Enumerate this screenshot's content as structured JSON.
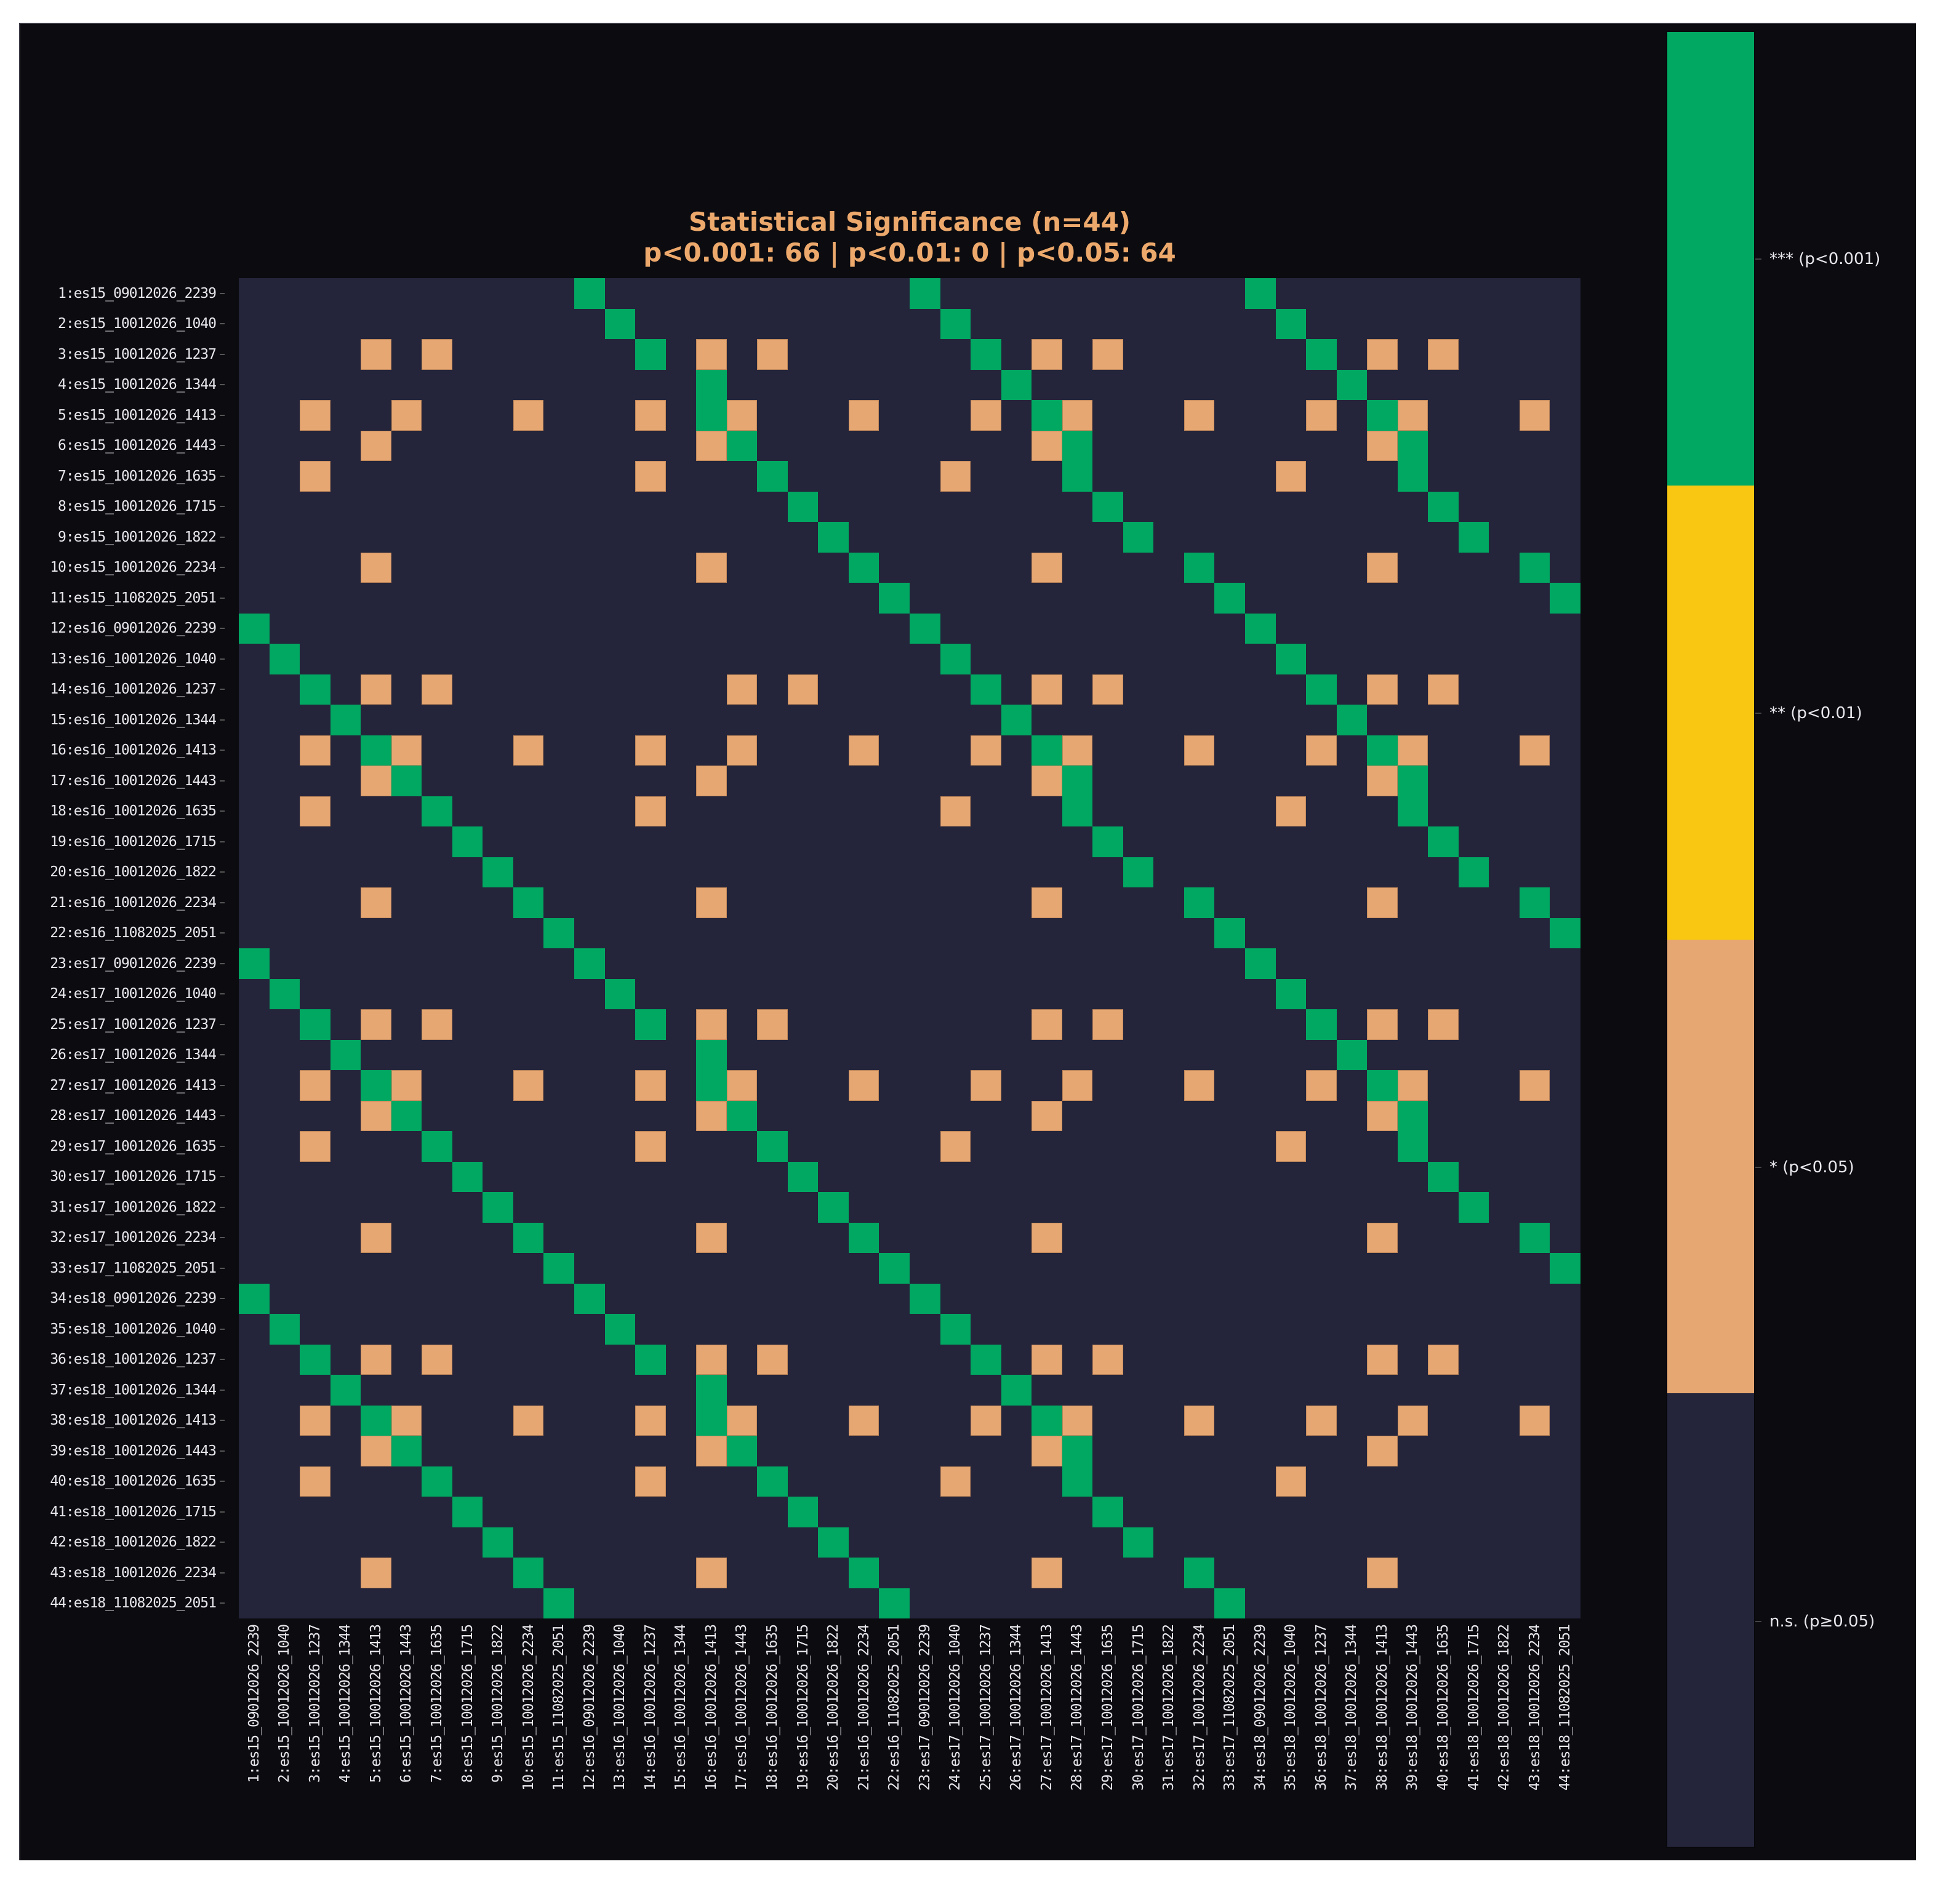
{
  "chart_data": {
    "type": "heatmap",
    "title": "Statistical Significance (n=44)",
    "subtitle": "p<0.001: 66 | p<0.01: 0 | p<0.05: 64",
    "counts": {
      "p<0.001": 66,
      "p<0.01": 0,
      "p<0.05": 64
    },
    "n": 44,
    "labels": [
      "1:es15_09012026_2239",
      "2:es15_10012026_1040",
      "3:es15_10012026_1237",
      "4:es15_10012026_1344",
      "5:es15_10012026_1413",
      "6:es15_10012026_1443",
      "7:es15_10012026_1635",
      "8:es15_10012026_1715",
      "9:es15_10012026_1822",
      "10:es15_10012026_2234",
      "11:es15_11082025_2051",
      "12:es16_09012026_2239",
      "13:es16_10012026_1040",
      "14:es16_10012026_1237",
      "15:es16_10012026_1344",
      "16:es16_10012026_1413",
      "17:es16_10012026_1443",
      "18:es16_10012026_1635",
      "19:es16_10012026_1715",
      "20:es16_10012026_1822",
      "21:es16_10012026_2234",
      "22:es16_11082025_2051",
      "23:es17_09012026_2239",
      "24:es17_10012026_1040",
      "25:es17_10012026_1237",
      "26:es17_10012026_1344",
      "27:es17_10012026_1413",
      "28:es17_10012026_1443",
      "29:es17_10012026_1635",
      "30:es17_10012026_1715",
      "31:es17_10012026_1822",
      "32:es17_10012026_2234",
      "33:es17_11082025_2051",
      "34:es18_09012026_2239",
      "35:es18_10012026_1040",
      "36:es18_10012026_1237",
      "37:es18_10012026_1344",
      "38:es18_10012026_1413",
      "39:es18_10012026_1443",
      "40:es18_10012026_1635",
      "41:es18_10012026_1715",
      "42:es18_10012026_1822",
      "43:es18_10012026_2234",
      "44:es18_11082025_2051"
    ],
    "levels": [
      {
        "code": 3,
        "label": "*** (p<0.001)",
        "color": "#00a862"
      },
      {
        "code": 2,
        "label": "** (p<0.01)",
        "color": "#f9c612"
      },
      {
        "code": 1,
        "label": "* (p<0.05)",
        "color": "#e6a772"
      },
      {
        "code": 0,
        "label": "n.s. (p≥0.05)",
        "color": "#24243a"
      }
    ],
    "matrix_encoding": "row strings, one digit per column: 0=n.s., 1=p<0.05, 2=p<0.01, 3=p<0.001",
    "matrix": [
      "00000000000300000000003000000000030000000000",
      "00000000000030000000000300000000003000000000",
      "00001010000003010100000030101000000301010000",
      "00000000000000030000000003000000000030000000",
      "00100100010001031000100010310001000103100010",
      "00001000000000013000000000130000000001300000",
      "00100000000001000300000100030000001000300000",
      "00000000000000000030000000003000000000030000",
      "00000000000000000003000000000300000000003000",
      "00001000000000010000300000100003000001000030",
      "00000000000000000000030000000000300000000003",
      "30000000000000000000003000000000030000000000",
      "03000000000000000000000300000000003000000000",
      "00301010000000001010000030101000000301010000",
      "00030000000000000000000003000000000030000000",
      "00103100010001001000100010310001000103100010",
      "00001300000000010000000000130000000001300000",
      "00100030000001000000000100030000001000300000",
      "00000003000000000000000000003000000000030000",
      "00000000300000000000000000000300000000003000",
      "00001000030000010000000000100003000001000030",
      "00000000003000000000000000000000300000000003",
      "30000000000300000000000000000000030000000000",
      "03000000000030000000000000000000003000000000",
      "00301010000003010100000000101000000301010000",
      "00030000000000030000000000000000000030000000",
      "00103100010001031000100010010001000103100010",
      "00001300000000013000000000100000000001300000",
      "00100030000001000300000100000000001000300000",
      "00000003000000000030000000000000000000030000",
      "00000000300000000003000000000000000000003000",
      "00001000030000010000300000100000000001000030",
      "00000000003000000000030000000000000000000003",
      "30000000000300000000003000000000000000000000",
      "03000000000030000000000300000000000000000000",
      "00301010000003010100000030101000000001010000",
      "00030000000000030000000003000000000000000000",
      "00103100010001031000100010310001000100100010",
      "00001300000000013000000000130000000001000000",
      "00100030000001000300000100030000001000000000",
      "00000003000000000030000000003000000000000000",
      "00000000300000000003000000000300000000000000",
      "00001000030000010000300000100003000001000000",
      "00000000003000000000030000000000300000000000"
    ],
    "xlabel": "",
    "ylabel": "",
    "colorbar_position": "right"
  },
  "colorbar": {
    "labels": [
      "*** (p<0.001)",
      "** (p<0.01)",
      "* (p<0.05)",
      "n.s. (p≥0.05)"
    ],
    "colors": [
      "#00a862",
      "#f9c612",
      "#e6a772",
      "#24243a"
    ]
  }
}
